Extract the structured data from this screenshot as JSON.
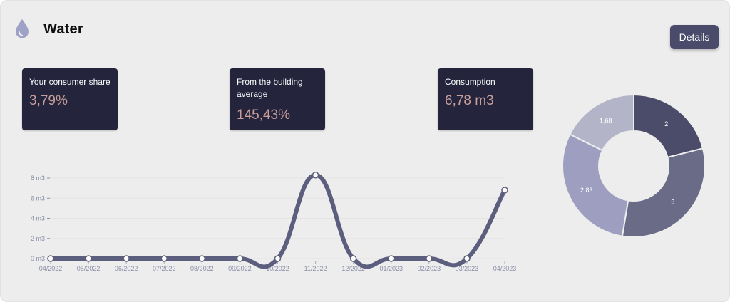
{
  "header": {
    "title": "Water",
    "icon": "water-drop-icon",
    "details_label": "Details"
  },
  "stats": [
    {
      "label": "Your consumer share",
      "value": "3,79%"
    },
    {
      "label": "From the building average",
      "value": "145,43%"
    },
    {
      "label": "Consumption",
      "value": "6,78 m3"
    }
  ],
  "colors": {
    "line": "#5c5e7e",
    "stat_bg": "#24243d",
    "stat_value": "#c79e9a",
    "button": "#4a4b6b"
  },
  "chart_data": [
    {
      "type": "line",
      "categories": [
        "04/2022",
        "05/2022",
        "06/2022",
        "07/2022",
        "08/2022",
        "09/2022",
        "10/2022",
        "11/2022",
        "12/2022",
        "01/2023",
        "02/2023",
        "03/2023",
        "04/2023"
      ],
      "values": [
        0,
        0,
        0,
        0,
        0,
        0,
        0,
        8.3,
        0,
        0,
        0,
        0,
        6.8
      ],
      "y_ticks": [
        "0 m3",
        "2 m3",
        "4 m3",
        "6 m3",
        "8 m3"
      ],
      "ylim": [
        0,
        8
      ],
      "smooth": true,
      "grid": true
    },
    {
      "type": "pie",
      "donut": true,
      "labels": [
        "2",
        "3",
        "2,83",
        "1,68"
      ],
      "values": [
        2,
        3,
        2.83,
        1.68
      ],
      "colors": [
        "#4b4c69",
        "#6a6c87",
        "#9e9fc0",
        "#b3b4c8"
      ]
    }
  ]
}
